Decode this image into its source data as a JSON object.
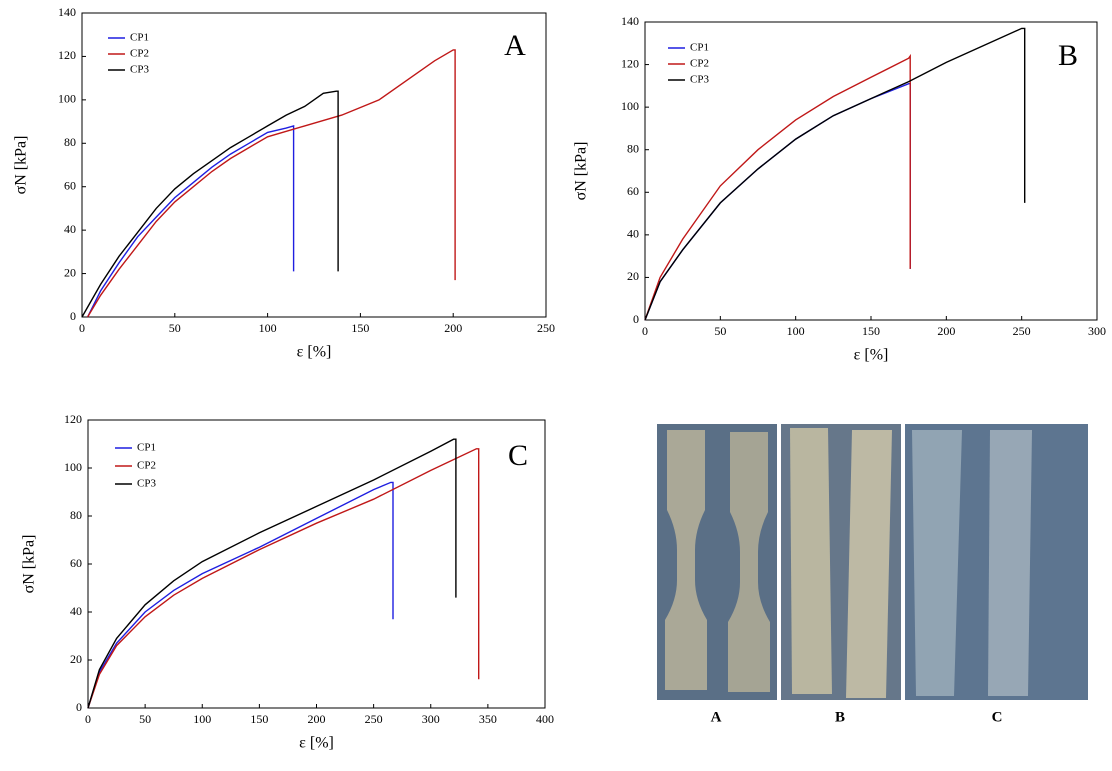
{
  "chart_data": [
    {
      "type": "line",
      "panel_label": "A",
      "x_label": "ε [%]",
      "y_label": "σN [kPa]",
      "xlim": [
        0,
        250
      ],
      "xticks": [
        0,
        50,
        100,
        150,
        200,
        250
      ],
      "ylim": [
        0,
        140
      ],
      "yticks": [
        0,
        20,
        40,
        60,
        80,
        100,
        120,
        140
      ],
      "legend": "upper left",
      "series": [
        {
          "name": "CP1",
          "color": "#1f1fe0",
          "x": [
            3,
            10,
            20,
            30,
            40,
            50,
            60,
            70,
            80,
            90,
            100,
            110,
            114,
            114
          ],
          "values": [
            0,
            12,
            25,
            37,
            46,
            55,
            62,
            69,
            75,
            80,
            85,
            87,
            88,
            21
          ]
        },
        {
          "name": "CP2",
          "color": "#c01818",
          "x": [
            3,
            10,
            20,
            30,
            40,
            50,
            60,
            70,
            80,
            90,
            100,
            120,
            140,
            160,
            180,
            190,
            200,
            201,
            201
          ],
          "values": [
            0,
            10,
            22,
            33,
            44,
            53,
            60,
            67,
            73,
            78,
            83,
            88,
            93,
            100,
            112,
            118,
            123,
            123,
            17
          ]
        },
        {
          "name": "CP3",
          "color": "#000000",
          "x": [
            0,
            10,
            20,
            30,
            40,
            50,
            60,
            70,
            80,
            90,
            100,
            110,
            120,
            130,
            137,
            138,
            138
          ],
          "values": [
            0,
            15,
            28,
            39,
            50,
            59,
            66,
            72,
            78,
            83,
            88,
            93,
            97,
            103,
            104,
            104,
            21
          ]
        }
      ]
    },
    {
      "type": "line",
      "panel_label": "B",
      "x_label": "ε [%]",
      "y_label": "σN [kPa]",
      "xlim": [
        0,
        300
      ],
      "xticks": [
        0,
        50,
        100,
        150,
        200,
        250,
        300
      ],
      "ylim": [
        0,
        140
      ],
      "yticks": [
        0,
        20,
        40,
        60,
        80,
        100,
        120,
        140
      ],
      "legend": "upper left",
      "series": [
        {
          "name": "CP1",
          "color": "#1f1fe0",
          "x": [
            0,
            10,
            25,
            50,
            75,
            100,
            125,
            150,
            175,
            176,
            176
          ],
          "values": [
            0,
            18,
            33,
            55,
            71,
            85,
            96,
            104,
            111,
            111,
            24
          ]
        },
        {
          "name": "CP2",
          "color": "#c01818",
          "x": [
            0,
            10,
            25,
            50,
            75,
            100,
            125,
            150,
            175,
            176,
            176
          ],
          "values": [
            0,
            20,
            38,
            63,
            80,
            94,
            105,
            114,
            123,
            124,
            24
          ]
        },
        {
          "name": "CP3",
          "color": "#000000",
          "x": [
            0,
            10,
            25,
            50,
            75,
            100,
            125,
            150,
            175,
            200,
            225,
            250,
            252,
            252
          ],
          "values": [
            0,
            18,
            33,
            55,
            71,
            85,
            96,
            104,
            112,
            121,
            129,
            137,
            137,
            55
          ]
        }
      ]
    },
    {
      "type": "line",
      "panel_label": "C",
      "x_label": "ε [%]",
      "y_label": "σN [kPa]",
      "xlim": [
        0,
        400
      ],
      "xticks": [
        0,
        50,
        100,
        150,
        200,
        250,
        300,
        350,
        400
      ],
      "ylim": [
        0,
        120
      ],
      "yticks": [
        0,
        20,
        40,
        60,
        80,
        100,
        120
      ],
      "legend": "upper left",
      "series": [
        {
          "name": "CP1",
          "color": "#1f1fe0",
          "x": [
            0,
            10,
            25,
            50,
            75,
            100,
            150,
            200,
            250,
            265,
            267,
            267
          ],
          "values": [
            0,
            15,
            27,
            40,
            49,
            56,
            67,
            79,
            91,
            94,
            94,
            37
          ]
        },
        {
          "name": "CP2",
          "color": "#c01818",
          "x": [
            0,
            10,
            25,
            50,
            75,
            100,
            150,
            200,
            250,
            300,
            340,
            342,
            342
          ],
          "values": [
            0,
            14,
            26,
            38,
            47,
            54,
            66,
            77,
            87,
            99,
            108,
            108,
            12
          ]
        },
        {
          "name": "CP3",
          "color": "#000000",
          "x": [
            0,
            10,
            25,
            50,
            75,
            100,
            150,
            200,
            250,
            300,
            320,
            322,
            322
          ],
          "values": [
            0,
            16,
            29,
            43,
            53,
            61,
            73,
            84,
            95,
            107,
            112,
            112,
            46
          ]
        }
      ]
    }
  ],
  "photo": {
    "labels": [
      "A",
      "B",
      "C"
    ]
  }
}
